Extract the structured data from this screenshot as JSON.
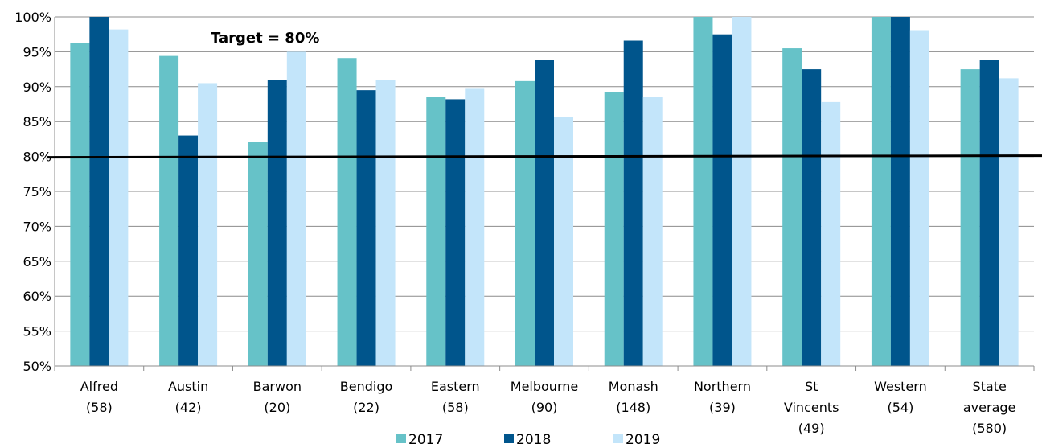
{
  "chart_data": {
    "type": "bar",
    "title": "",
    "xlabel": "",
    "ylabel": "",
    "ylim": [
      50,
      100
    ],
    "yticks": [
      "50%",
      "55%",
      "60%",
      "65%",
      "70%",
      "75%",
      "80%",
      "85%",
      "90%",
      "95%",
      "100%"
    ],
    "grid": true,
    "legend_position": "bottom",
    "categories": [
      [
        "Alfred",
        "(58)"
      ],
      [
        "Austin",
        "(42)"
      ],
      [
        "Barwon",
        "(20)"
      ],
      [
        "Bendigo",
        "(22)"
      ],
      [
        "Eastern",
        "(58)"
      ],
      [
        "Melbourne",
        "(90)"
      ],
      [
        "Monash",
        "(148)"
      ],
      [
        "Northern",
        "(39)"
      ],
      [
        "St",
        "Vincents",
        "(49)"
      ],
      [
        "Western",
        "(54)"
      ],
      [
        "State",
        "average",
        "(580)"
      ]
    ],
    "series": [
      {
        "name": "2017",
        "color": "#66c2c8",
        "values": [
          96.3,
          94.4,
          82.1,
          94.1,
          88.5,
          90.8,
          89.2,
          100,
          95.5,
          100,
          92.5
        ]
      },
      {
        "name": "2018",
        "color": "#00558c",
        "values": [
          100,
          83.0,
          90.9,
          89.5,
          88.2,
          93.8,
          96.6,
          97.5,
          92.5,
          100,
          93.8
        ]
      },
      {
        "name": "2019",
        "color": "#c3e5fa",
        "values": [
          98.2,
          90.5,
          95.0,
          90.9,
          89.7,
          85.6,
          88.5,
          100,
          87.8,
          98.1,
          91.2
        ]
      }
    ],
    "target": {
      "label": "Target  = 80%",
      "value": 80
    }
  }
}
